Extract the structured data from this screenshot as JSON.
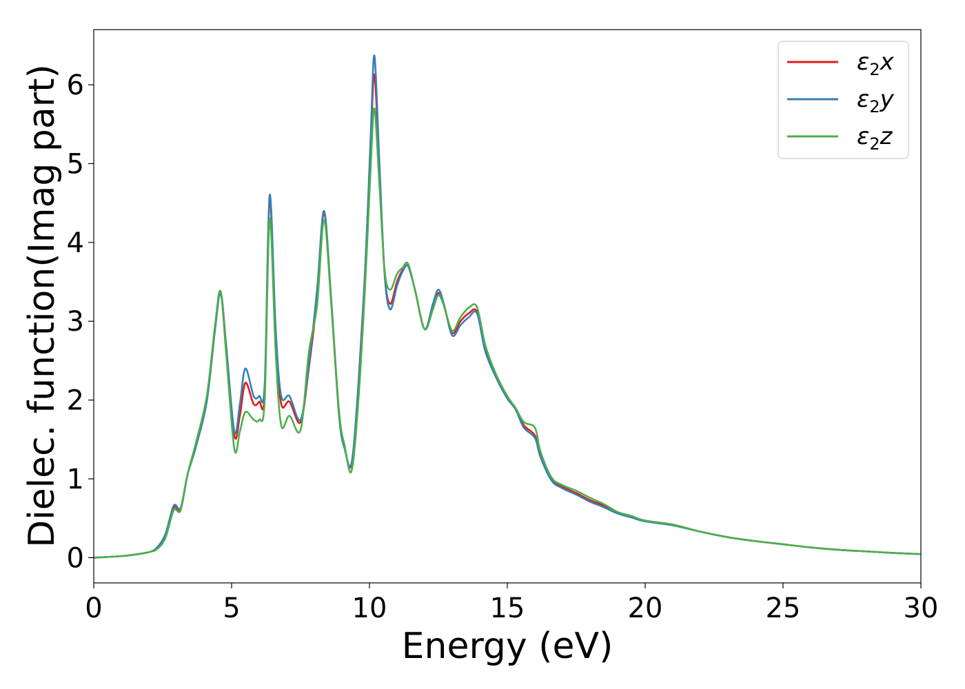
{
  "chart_data": {
    "type": "line",
    "title": "",
    "xlabel": "Energy (eV)",
    "ylabel": "Dielec. function(Imag part)",
    "xlim": [
      0,
      30
    ],
    "ylim": [
      -0.32,
      6.7
    ],
    "xticks": [
      0,
      5,
      10,
      15,
      20,
      25,
      30
    ],
    "yticks": [
      0,
      1,
      2,
      3,
      4,
      5,
      6
    ],
    "grid": false,
    "legend_position": "top-right",
    "series": [
      {
        "name": "ε₂x",
        "legend_base": "ε",
        "legend_sub": "2",
        "legend_tail": "x",
        "color": "#e41a1c",
        "points": [
          [
            0,
            0
          ],
          [
            1,
            0.02
          ],
          [
            1.5,
            0.04
          ],
          [
            2,
            0.07
          ],
          [
            2.3,
            0.12
          ],
          [
            2.6,
            0.28
          ],
          [
            2.9,
            0.63
          ],
          [
            3.15,
            0.62
          ],
          [
            3.4,
            1.05
          ],
          [
            3.7,
            1.42
          ],
          [
            4.1,
            2.0
          ],
          [
            4.4,
            2.9
          ],
          [
            4.6,
            3.37
          ],
          [
            4.8,
            2.7
          ],
          [
            5.1,
            1.55
          ],
          [
            5.3,
            1.8
          ],
          [
            5.5,
            2.22
          ],
          [
            5.8,
            1.95
          ],
          [
            6.0,
            1.98
          ],
          [
            6.2,
            2.1
          ],
          [
            6.38,
            4.55
          ],
          [
            6.6,
            2.8
          ],
          [
            6.8,
            1.95
          ],
          [
            7.1,
            1.98
          ],
          [
            7.5,
            1.72
          ],
          [
            7.8,
            2.4
          ],
          [
            8.1,
            3.3
          ],
          [
            8.35,
            4.35
          ],
          [
            8.6,
            3.3
          ],
          [
            8.9,
            1.8
          ],
          [
            9.1,
            1.4
          ],
          [
            9.35,
            1.18
          ],
          [
            9.6,
            2.2
          ],
          [
            9.85,
            3.7
          ],
          [
            10.05,
            5.3
          ],
          [
            10.18,
            6.13
          ],
          [
            10.35,
            5.0
          ],
          [
            10.55,
            3.6
          ],
          [
            10.75,
            3.22
          ],
          [
            11.0,
            3.5
          ],
          [
            11.2,
            3.65
          ],
          [
            11.4,
            3.7
          ],
          [
            11.65,
            3.4
          ],
          [
            12.0,
            2.9
          ],
          [
            12.3,
            3.2
          ],
          [
            12.5,
            3.36
          ],
          [
            12.7,
            3.2
          ],
          [
            13.0,
            2.85
          ],
          [
            13.3,
            3.0
          ],
          [
            13.6,
            3.1
          ],
          [
            13.9,
            3.12
          ],
          [
            14.2,
            2.65
          ],
          [
            14.6,
            2.3
          ],
          [
            15.0,
            2.02
          ],
          [
            15.3,
            1.9
          ],
          [
            15.6,
            1.68
          ],
          [
            16.0,
            1.55
          ],
          [
            16.2,
            1.3
          ],
          [
            16.6,
            1.0
          ],
          [
            17.0,
            0.9
          ],
          [
            17.5,
            0.82
          ],
          [
            18.0,
            0.73
          ],
          [
            18.5,
            0.66
          ],
          [
            19.0,
            0.57
          ],
          [
            19.5,
            0.52
          ],
          [
            20.0,
            0.47
          ],
          [
            21.0,
            0.42
          ],
          [
            22.0,
            0.33
          ],
          [
            23.0,
            0.26
          ],
          [
            24.0,
            0.21
          ],
          [
            25.0,
            0.17
          ],
          [
            26.0,
            0.13
          ],
          [
            27.0,
            0.1
          ],
          [
            28.0,
            0.08
          ],
          [
            29.0,
            0.06
          ],
          [
            30.0,
            0.045
          ]
        ]
      },
      {
        "name": "ε₂y",
        "legend_base": "ε",
        "legend_sub": "2",
        "legend_tail": "y",
        "color": "#377eb8",
        "points": [
          [
            0,
            0
          ],
          [
            1,
            0.02
          ],
          [
            1.5,
            0.04
          ],
          [
            2,
            0.07
          ],
          [
            2.3,
            0.13
          ],
          [
            2.6,
            0.3
          ],
          [
            2.9,
            0.66
          ],
          [
            3.15,
            0.63
          ],
          [
            3.4,
            1.05
          ],
          [
            3.7,
            1.4
          ],
          [
            4.1,
            1.98
          ],
          [
            4.4,
            2.9
          ],
          [
            4.6,
            3.35
          ],
          [
            4.8,
            2.7
          ],
          [
            5.1,
            1.6
          ],
          [
            5.3,
            1.95
          ],
          [
            5.5,
            2.4
          ],
          [
            5.8,
            2.05
          ],
          [
            6.0,
            2.05
          ],
          [
            6.2,
            2.2
          ],
          [
            6.38,
            4.6
          ],
          [
            6.6,
            2.9
          ],
          [
            6.8,
            2.05
          ],
          [
            7.1,
            2.05
          ],
          [
            7.5,
            1.75
          ],
          [
            7.8,
            2.45
          ],
          [
            8.1,
            3.4
          ],
          [
            8.35,
            4.4
          ],
          [
            8.6,
            3.35
          ],
          [
            8.9,
            1.8
          ],
          [
            9.1,
            1.38
          ],
          [
            9.35,
            1.2
          ],
          [
            9.6,
            2.2
          ],
          [
            9.85,
            3.7
          ],
          [
            10.05,
            5.4
          ],
          [
            10.18,
            6.37
          ],
          [
            10.35,
            5.1
          ],
          [
            10.55,
            3.6
          ],
          [
            10.75,
            3.15
          ],
          [
            11.0,
            3.45
          ],
          [
            11.2,
            3.63
          ],
          [
            11.4,
            3.7
          ],
          [
            11.65,
            3.4
          ],
          [
            12.0,
            2.9
          ],
          [
            12.3,
            3.22
          ],
          [
            12.5,
            3.4
          ],
          [
            12.7,
            3.22
          ],
          [
            13.0,
            2.82
          ],
          [
            13.3,
            2.95
          ],
          [
            13.6,
            3.05
          ],
          [
            13.9,
            3.1
          ],
          [
            14.2,
            2.62
          ],
          [
            14.6,
            2.28
          ],
          [
            15.0,
            2.02
          ],
          [
            15.3,
            1.88
          ],
          [
            15.6,
            1.65
          ],
          [
            16.0,
            1.52
          ],
          [
            16.2,
            1.28
          ],
          [
            16.6,
            0.98
          ],
          [
            17.0,
            0.88
          ],
          [
            17.5,
            0.8
          ],
          [
            18.0,
            0.71
          ],
          [
            18.5,
            0.64
          ],
          [
            19.0,
            0.56
          ],
          [
            19.5,
            0.51
          ],
          [
            20.0,
            0.46
          ],
          [
            21.0,
            0.41
          ],
          [
            22.0,
            0.33
          ],
          [
            23.0,
            0.26
          ],
          [
            24.0,
            0.21
          ],
          [
            25.0,
            0.17
          ],
          [
            26.0,
            0.13
          ],
          [
            27.0,
            0.1
          ],
          [
            28.0,
            0.08
          ],
          [
            29.0,
            0.06
          ],
          [
            30.0,
            0.045
          ]
        ]
      },
      {
        "name": "ε₂z",
        "legend_base": "ε",
        "legend_sub": "2",
        "legend_tail": "z",
        "color": "#4daf4a",
        "points": [
          [
            0,
            0
          ],
          [
            1,
            0.02
          ],
          [
            1.5,
            0.04
          ],
          [
            2,
            0.07
          ],
          [
            2.3,
            0.11
          ],
          [
            2.6,
            0.25
          ],
          [
            2.9,
            0.6
          ],
          [
            3.15,
            0.6
          ],
          [
            3.4,
            1.05
          ],
          [
            3.7,
            1.45
          ],
          [
            4.1,
            2.05
          ],
          [
            4.4,
            2.95
          ],
          [
            4.6,
            3.38
          ],
          [
            4.8,
            2.6
          ],
          [
            5.1,
            1.38
          ],
          [
            5.3,
            1.6
          ],
          [
            5.5,
            1.85
          ],
          [
            5.8,
            1.75
          ],
          [
            6.0,
            1.75
          ],
          [
            6.2,
            2.0
          ],
          [
            6.38,
            4.3
          ],
          [
            6.6,
            2.6
          ],
          [
            6.8,
            1.68
          ],
          [
            7.1,
            1.8
          ],
          [
            7.5,
            1.62
          ],
          [
            7.8,
            2.6
          ],
          [
            8.1,
            3.2
          ],
          [
            8.35,
            4.28
          ],
          [
            8.6,
            3.3
          ],
          [
            8.9,
            1.85
          ],
          [
            9.1,
            1.42
          ],
          [
            9.35,
            1.1
          ],
          [
            9.6,
            2.0
          ],
          [
            9.85,
            3.5
          ],
          [
            10.05,
            5.0
          ],
          [
            10.18,
            5.7
          ],
          [
            10.35,
            4.8
          ],
          [
            10.55,
            3.65
          ],
          [
            10.75,
            3.4
          ],
          [
            11.0,
            3.6
          ],
          [
            11.2,
            3.68
          ],
          [
            11.4,
            3.73
          ],
          [
            11.65,
            3.4
          ],
          [
            12.0,
            2.9
          ],
          [
            12.3,
            3.15
          ],
          [
            12.5,
            3.33
          ],
          [
            12.7,
            3.2
          ],
          [
            13.0,
            2.88
          ],
          [
            13.3,
            3.05
          ],
          [
            13.6,
            3.17
          ],
          [
            13.9,
            3.18
          ],
          [
            14.2,
            2.7
          ],
          [
            14.6,
            2.32
          ],
          [
            15.0,
            2.05
          ],
          [
            15.3,
            1.9
          ],
          [
            15.6,
            1.72
          ],
          [
            16.0,
            1.65
          ],
          [
            16.2,
            1.35
          ],
          [
            16.6,
            1.02
          ],
          [
            17.0,
            0.92
          ],
          [
            17.5,
            0.85
          ],
          [
            18.0,
            0.76
          ],
          [
            18.5,
            0.68
          ],
          [
            19.0,
            0.58
          ],
          [
            19.5,
            0.53
          ],
          [
            20.0,
            0.47
          ],
          [
            21.0,
            0.42
          ],
          [
            22.0,
            0.33
          ],
          [
            23.0,
            0.26
          ],
          [
            24.0,
            0.21
          ],
          [
            25.0,
            0.17
          ],
          [
            26.0,
            0.13
          ],
          [
            27.0,
            0.1
          ],
          [
            28.0,
            0.08
          ],
          [
            29.0,
            0.06
          ],
          [
            30.0,
            0.045
          ]
        ]
      }
    ]
  }
}
